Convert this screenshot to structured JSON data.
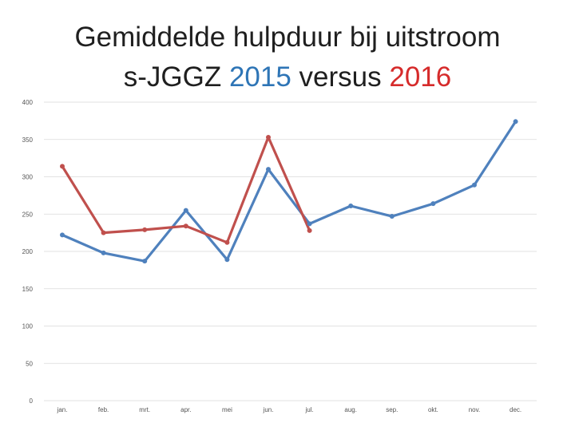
{
  "title": {
    "line1": "Gemiddelde hulpduur bij uitstroom",
    "line2_prefix": "s-JGGZ ",
    "year_a": "2015",
    "connector": " versus ",
    "year_b": "2016"
  },
  "colors": {
    "series_2015": "#4f81bd",
    "series_2016": "#c0504d",
    "title_2015": "#2e75b6",
    "title_2016": "#d62b2b",
    "grid": "#d9d9d9"
  },
  "chart_data": {
    "type": "line",
    "title": "Gemiddelde hulpduur bij uitstroom s-JGGZ 2015 versus 2016",
    "xlabel": "",
    "ylabel": "",
    "categories": [
      "jan.",
      "feb.",
      "mrt.",
      "apr.",
      "mei",
      "jun.",
      "jul.",
      "aug.",
      "sep.",
      "okt.",
      "nov.",
      "dec."
    ],
    "yticks": [
      "0",
      "50",
      "100",
      "150",
      "200",
      "250",
      "300",
      "350",
      "400"
    ],
    "ylim": [
      0,
      400
    ],
    "grid": true,
    "legend": "none",
    "series": [
      {
        "values": [
          222,
          198,
          187,
          255,
          189,
          310,
          237,
          261,
          247,
          264,
          289,
          374
        ]
      },
      {
        "values": [
          314,
          225,
          229,
          234,
          212,
          353,
          228,
          null,
          null,
          null,
          null,
          null
        ]
      }
    ]
  }
}
